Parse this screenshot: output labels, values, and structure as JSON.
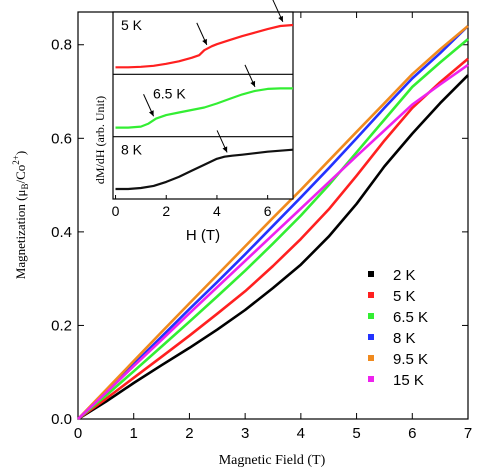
{
  "chart_data": [
    {
      "type": "line",
      "xlabel": "Magnetic Field (T)",
      "ylabel_main": "Magnetization (μ",
      "ylabel_sub": "B",
      "ylabel_mid": "/Co",
      "ylabel_sup": "2+",
      "ylabel_end": ")",
      "xlim": [
        0,
        7
      ],
      "ylim": [
        0,
        0.87
      ],
      "xticks": [
        0,
        1,
        2,
        3,
        4,
        5,
        6,
        7
      ],
      "xtick_labels": [
        "0",
        "1",
        "2",
        "3",
        "4",
        "5",
        "6",
        "7"
      ],
      "yticks": [
        0.0,
        0.2,
        0.4,
        0.6,
        0.8
      ],
      "ytick_labels": [
        "0.0",
        "0.2",
        "0.4",
        "0.6",
        "0.8"
      ],
      "legend_position": "bottom-right",
      "x": [
        0,
        0.5,
        1,
        1.5,
        2,
        2.5,
        3,
        3.5,
        4,
        4.5,
        5,
        5.5,
        6,
        6.5,
        7
      ],
      "series": [
        {
          "name": "2 K",
          "color": "#000000",
          "values": [
            0,
            0.037,
            0.077,
            0.115,
            0.152,
            0.191,
            0.233,
            0.28,
            0.33,
            0.39,
            0.46,
            0.54,
            0.61,
            0.675,
            0.735
          ]
        },
        {
          "name": "5 K",
          "color": "#ff2020",
          "values": [
            0,
            0.043,
            0.088,
            0.133,
            0.178,
            0.225,
            0.273,
            0.327,
            0.385,
            0.448,
            0.52,
            0.595,
            0.665,
            0.72,
            0.77
          ]
        },
        {
          "name": "6.5 K",
          "color": "#33ee33",
          "values": [
            0,
            0.05,
            0.102,
            0.155,
            0.208,
            0.262,
            0.317,
            0.375,
            0.435,
            0.5,
            0.57,
            0.64,
            0.71,
            0.762,
            0.812
          ]
        },
        {
          "name": "8 K",
          "color": "#2233ff",
          "values": [
            0,
            0.058,
            0.117,
            0.176,
            0.235,
            0.293,
            0.352,
            0.413,
            0.474,
            0.536,
            0.6,
            0.665,
            0.728,
            0.782,
            0.84
          ]
        },
        {
          "name": "9.5 K",
          "color": "#f08a1e",
          "values": [
            0,
            0.062,
            0.124,
            0.186,
            0.247,
            0.308,
            0.369,
            0.43,
            0.49,
            0.552,
            0.614,
            0.675,
            0.737,
            0.79,
            0.84
          ]
        },
        {
          "name": "15 K",
          "color": "#ee22ee",
          "values": [
            0,
            0.056,
            0.113,
            0.169,
            0.226,
            0.282,
            0.338,
            0.394,
            0.45,
            0.506,
            0.562,
            0.617,
            0.672,
            0.715,
            0.757
          ]
        }
      ]
    },
    {
      "type": "line",
      "xlabel": "H (T)",
      "ylabel": "dM/dH (arb. Unit)",
      "xlim": [
        -0.1,
        7
      ],
      "xticks": [
        0,
        2,
        4,
        6
      ],
      "xtick_labels": [
        "0",
        "2",
        "4",
        "6"
      ],
      "panels": [
        {
          "label": "5 K",
          "color": "#ff2020",
          "x": [
            0,
            0.5,
            1,
            1.5,
            2,
            2.5,
            3,
            3.3,
            3.5,
            3.8,
            4,
            4.5,
            5,
            5.5,
            6,
            6.5,
            7
          ],
          "y": [
            0.06,
            0.06,
            0.07,
            0.09,
            0.13,
            0.18,
            0.25,
            0.3,
            0.4,
            0.48,
            0.52,
            0.6,
            0.68,
            0.75,
            0.82,
            0.88,
            0.9
          ],
          "arrows_at_x": [
            3.6,
            6.6
          ]
        },
        {
          "label": "6.5 K",
          "color": "#33ee33",
          "x": [
            0,
            0.5,
            1,
            1.3,
            1.6,
            2,
            2.5,
            3,
            3.5,
            4,
            4.5,
            5,
            5.5,
            6,
            6.5,
            7
          ],
          "y": [
            0.1,
            0.1,
            0.12,
            0.18,
            0.28,
            0.35,
            0.4,
            0.45,
            0.5,
            0.58,
            0.67,
            0.76,
            0.83,
            0.87,
            0.88,
            0.88
          ],
          "arrows_at_x": [
            1.5,
            5.5
          ]
        },
        {
          "label": "8 K",
          "color": "#111111",
          "x": [
            0,
            0.5,
            1,
            1.5,
            2,
            2.5,
            3,
            3.5,
            4,
            4.3,
            4.6,
            5,
            5.5,
            6,
            6.5,
            7
          ],
          "y": [
            0.12,
            0.12,
            0.14,
            0.18,
            0.26,
            0.36,
            0.48,
            0.6,
            0.72,
            0.76,
            0.78,
            0.8,
            0.83,
            0.86,
            0.88,
            0.9
          ],
          "arrows_at_x": [
            4.4
          ]
        }
      ]
    }
  ]
}
